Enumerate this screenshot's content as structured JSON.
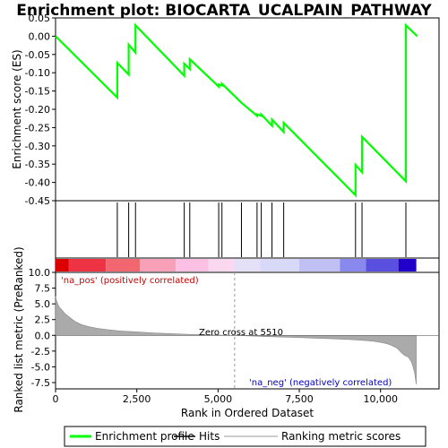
{
  "chart_data": {
    "type": "line",
    "title": "Enrichment plot: BIOCARTA_UCALPAIN_PATHWAY",
    "top_panel": {
      "ylabel": "Enrichment score (ES)",
      "ylim": [
        -0.45,
        0.05
      ],
      "yticks": [
        0.05,
        0.0,
        -0.05,
        -0.1,
        -0.15,
        -0.2,
        -0.25,
        -0.3,
        -0.35,
        -0.4,
        -0.45
      ],
      "ytick_labels": [
        "0.05",
        "0.00",
        "-0.05",
        "-0.10",
        "-0.15",
        "-0.20",
        "-0.25",
        "-0.30",
        "-0.35",
        "-0.40",
        "-0.45"
      ],
      "series": [
        {
          "name": "Enrichment profile",
          "color": "#00ff00",
          "x": [
            0,
            1900,
            1900,
            2250,
            2250,
            2460,
            2460,
            3960,
            3960,
            4130,
            4130,
            5020,
            5020,
            5120,
            5120,
            5720,
            5720,
            6200,
            6200,
            6330,
            6330,
            6660,
            6660,
            7020,
            7020,
            9230,
            9230,
            9430,
            9430,
            10780,
            10780,
            11130
          ],
          "y": [
            0.0,
            -0.168,
            -0.073,
            -0.105,
            -0.023,
            -0.045,
            0.03,
            -0.108,
            -0.075,
            -0.09,
            -0.063,
            -0.138,
            -0.132,
            -0.135,
            -0.13,
            -0.182,
            -0.182,
            -0.218,
            -0.214,
            -0.218,
            -0.214,
            -0.245,
            -0.228,
            -0.262,
            -0.237,
            -0.435,
            -0.352,
            -0.372,
            -0.275,
            -0.397,
            0.03,
            0.0
          ]
        }
      ]
    },
    "hits": [
      1900,
      2250,
      2460,
      3960,
      4130,
      5020,
      5120,
      5720,
      6200,
      6330,
      6660,
      7020,
      9230,
      9430,
      10780
    ],
    "color_bar": {
      "segments": [
        {
          "from": 0,
          "to": 400,
          "color": "#dd0000"
        },
        {
          "from": 400,
          "to": 1550,
          "color": "#ee3344"
        },
        {
          "from": 1550,
          "to": 2600,
          "color": "#f26670"
        },
        {
          "from": 2600,
          "to": 3700,
          "color": "#f8a0b8"
        },
        {
          "from": 3700,
          "to": 4700,
          "color": "#fbc0e4"
        },
        {
          "from": 4700,
          "to": 5500,
          "color": "#fcd8f0"
        },
        {
          "from": 5500,
          "to": 6300,
          "color": "#e4e0f8"
        },
        {
          "from": 6300,
          "to": 7500,
          "color": "#d8d8f8"
        },
        {
          "from": 7500,
          "to": 8750,
          "color": "#c0c0f4"
        },
        {
          "from": 8750,
          "to": 9550,
          "color": "#8888ee"
        },
        {
          "from": 9550,
          "to": 10550,
          "color": "#5a50e0"
        },
        {
          "from": 10550,
          "to": 11100,
          "color": "#2200cc"
        }
      ]
    },
    "bottom_panel": {
      "ylabel": "Ranked list metric (PreRanked)",
      "xlabel": "Rank in Ordered Dataset",
      "ylim": [
        -8.5,
        10.0
      ],
      "yticks": [
        10.0,
        7.5,
        5.0,
        2.5,
        0.0,
        -2.5,
        -5.0,
        -7.5
      ],
      "ytick_labels": [
        "10.0",
        "7.5",
        "5.0",
        "2.5",
        "0.0",
        "-2.5",
        "-5.0",
        "-7.5"
      ],
      "xlim": [
        0,
        11800
      ],
      "xticks": [
        0,
        2500,
        5000,
        7500,
        10000
      ],
      "xtick_labels": [
        "0",
        "2,500",
        "5,000",
        "7,500",
        "10,000"
      ],
      "metric_curve": {
        "x": [
          0,
          30,
          100,
          200,
          300,
          450,
          600,
          800,
          1000,
          1300,
          1600,
          2000,
          2500,
          3000,
          3500,
          4000,
          4500,
          5000,
          5510,
          6000,
          6500,
          7000,
          7500,
          8000,
          8500,
          9000,
          9500,
          9800,
          10100,
          10300,
          10500,
          10650,
          10750,
          10850,
          10950,
          11000,
          11050,
          11100
        ],
        "y": [
          6.2,
          5.5,
          4.6,
          4.0,
          3.4,
          2.8,
          2.2,
          1.7,
          1.4,
          1.1,
          0.9,
          0.7,
          0.55,
          0.4,
          0.28,
          0.18,
          0.1,
          0.05,
          0.0,
          -0.1,
          -0.2,
          -0.28,
          -0.35,
          -0.45,
          -0.55,
          -0.65,
          -0.8,
          -0.95,
          -1.2,
          -1.5,
          -2.0,
          -2.8,
          -3.2,
          -3.4,
          -4.2,
          -5.0,
          -6.0,
          -7.8
        ]
      },
      "zero_cross_label": "Zero cross at 5510",
      "zero_cross": 5510,
      "pos_label": "'na_pos' (positively correlated)",
      "neg_label": "'na_neg' (negatively correlated)"
    },
    "legend": {
      "placement": "bottom",
      "entries": [
        {
          "label": "Enrichment profile",
          "color": "#00ff00",
          "kind": "line"
        },
        {
          "label": "Hits",
          "color": "#000000",
          "kind": "line"
        },
        {
          "label": "Ranking metric scores",
          "color": "#bbbbbb",
          "kind": "line"
        }
      ]
    },
    "colors": {
      "profile": "#00ff00",
      "hits": "#000000",
      "metric_fill": "#aaaaaa",
      "pos_label": "#cc0000",
      "neg_label": "#0000cc",
      "zero_line": "#999999"
    }
  }
}
